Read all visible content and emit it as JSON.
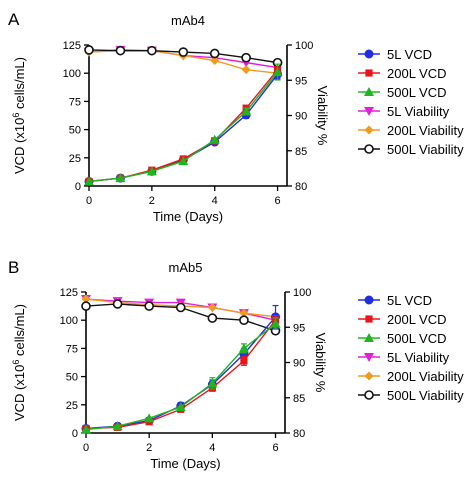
{
  "colors": {
    "5L VCD": "#1f2fe0",
    "200L VCD": "#e8161a",
    "500L VCD": "#20b520",
    "5L Viability": "#e020d8",
    "200L Viability": "#f09a20",
    "500L Viability": "#111111"
  },
  "chart_data": [
    {
      "panel_label": "A",
      "type": "line",
      "title": "mAb4",
      "xlabel": "Time (Days)",
      "ylabel_parts": [
        "VCD (x10",
        "6",
        " cells/mL)"
      ],
      "y2label": "Viability %",
      "x_ticks": [
        0,
        2,
        4,
        6
      ],
      "y_ticks": [
        0,
        25,
        50,
        75,
        100,
        125
      ],
      "y2_ticks": [
        80,
        85,
        90,
        95,
        100
      ],
      "xlim": [
        0,
        6.3
      ],
      "ylim": [
        0,
        125
      ],
      "y2lim": [
        80,
        100
      ],
      "legend_position": "right",
      "x": [
        0,
        1,
        2,
        3,
        4,
        5,
        6
      ],
      "series": [
        {
          "name": "5L VCD",
          "axis": "left",
          "marker": "circle-filled",
          "values": [
            4,
            7,
            13,
            23,
            39,
            63,
            99
          ],
          "errors": [
            0,
            0,
            0,
            0,
            0,
            3,
            4
          ]
        },
        {
          "name": "200L VCD",
          "axis": "left",
          "marker": "square",
          "values": [
            4,
            7,
            14,
            24,
            40,
            69,
            103
          ],
          "errors": [
            0,
            0,
            0,
            0,
            0,
            2,
            2
          ]
        },
        {
          "name": "500L VCD",
          "axis": "left",
          "marker": "triangle-up",
          "values": [
            4,
            7,
            13,
            22,
            41,
            66,
            101
          ],
          "errors": [
            0,
            0,
            0,
            0,
            0,
            3,
            7
          ]
        },
        {
          "name": "5L Viability",
          "axis": "right",
          "marker": "triangle-down",
          "values": [
            99.0,
            99.3,
            99.2,
            98.5,
            98.2,
            97.5,
            96.8
          ],
          "errors": [
            0,
            0,
            0,
            0,
            0,
            0,
            0
          ]
        },
        {
          "name": "200L Viability",
          "axis": "right",
          "marker": "diamond",
          "values": [
            99.0,
            99.2,
            99.2,
            98.5,
            97.8,
            96.5,
            96.0
          ],
          "errors": [
            0,
            0,
            0,
            0,
            0,
            0,
            0
          ]
        },
        {
          "name": "500L Viability",
          "axis": "right",
          "marker": "circle-open",
          "values": [
            99.3,
            99.2,
            99.2,
            99.0,
            98.8,
            98.2,
            97.5
          ],
          "errors": [
            0,
            0,
            0,
            0,
            0,
            0,
            0
          ]
        }
      ]
    },
    {
      "panel_label": "B",
      "type": "line",
      "title": "mAb5",
      "xlabel": "Time (Days)",
      "ylabel_parts": [
        "VCD (x10",
        "6",
        " cells/mL)"
      ],
      "y2label": "Viability %",
      "x_ticks": [
        0,
        2,
        4,
        6
      ],
      "y_ticks": [
        0,
        25,
        50,
        75,
        100,
        125
      ],
      "y2_ticks": [
        80,
        85,
        90,
        95,
        100
      ],
      "xlim": [
        0,
        6.3
      ],
      "ylim": [
        0,
        125
      ],
      "y2lim": [
        80,
        100
      ],
      "legend_position": "right",
      "x": [
        0,
        1,
        2,
        3,
        4,
        5,
        6
      ],
      "series": [
        {
          "name": "5L VCD",
          "axis": "left",
          "marker": "circle-filled",
          "values": [
            4,
            6,
            11,
            24,
            43,
            70,
            103
          ],
          "errors": [
            0,
            0,
            0,
            3,
            4,
            5,
            10
          ]
        },
        {
          "name": "200L VCD",
          "axis": "left",
          "marker": "square",
          "values": [
            4,
            5,
            10,
            21,
            40,
            64,
            100
          ],
          "errors": [
            0,
            0,
            0,
            0,
            3,
            4,
            4
          ]
        },
        {
          "name": "500L VCD",
          "axis": "left",
          "marker": "triangle-up",
          "values": [
            3,
            6,
            13,
            23,
            44,
            75,
            97
          ],
          "errors": [
            0,
            0,
            0,
            0,
            5,
            4,
            5
          ]
        },
        {
          "name": "5L Viability",
          "axis": "right",
          "marker": "triangle-down",
          "values": [
            99.0,
            98.7,
            98.5,
            98.5,
            97.8,
            97.0,
            96.0
          ],
          "errors": [
            0,
            0,
            0,
            0,
            0,
            0,
            0
          ]
        },
        {
          "name": "200L Viability",
          "axis": "right",
          "marker": "diamond",
          "values": [
            99.0,
            98.5,
            98.2,
            98.0,
            97.8,
            97.0,
            96.5
          ],
          "errors": [
            0,
            0,
            0,
            0,
            0,
            0,
            0
          ]
        },
        {
          "name": "500L Viability",
          "axis": "right",
          "marker": "circle-open",
          "values": [
            98.0,
            98.3,
            98.0,
            97.8,
            96.3,
            96.0,
            94.5
          ],
          "errors": [
            0,
            0,
            0,
            0,
            0,
            0,
            0
          ]
        }
      ]
    }
  ]
}
